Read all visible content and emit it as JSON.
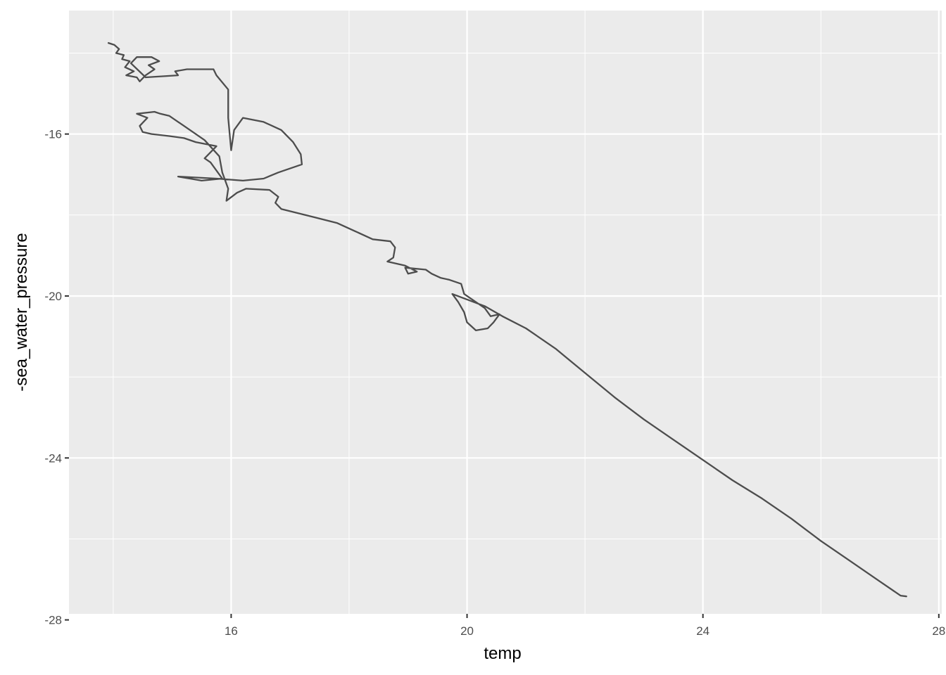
{
  "chart_data": {
    "type": "line",
    "title": "",
    "xlabel": "temp",
    "ylabel": "-sea_water_pressure",
    "xlim": [
      13.25,
      28.05
    ],
    "ylim": [
      -27.85,
      -12.95
    ],
    "x_ticks": [
      16,
      20,
      24,
      28
    ],
    "y_ticks": [
      -16,
      -20,
      -24,
      -28
    ],
    "x_tick_labels": [
      "16",
      "20",
      "24",
      "28"
    ],
    "y_tick_labels": [
      "-16",
      "-20",
      "-24",
      "-28"
    ],
    "grid": true,
    "legend": "none",
    "colors": {
      "panel": "#ebebeb",
      "grid": "#ffffff",
      "line": "#4d4d4d"
    },
    "series": [
      {
        "values": [
          [
            13.92,
            -13.75
          ],
          [
            14.02,
            -13.8
          ],
          [
            14.1,
            -13.9
          ],
          [
            14.05,
            -14.0
          ],
          [
            14.18,
            -14.05
          ],
          [
            14.15,
            -14.15
          ],
          [
            14.28,
            -14.2
          ],
          [
            14.2,
            -14.35
          ],
          [
            14.35,
            -14.45
          ],
          [
            14.22,
            -14.55
          ],
          [
            14.4,
            -14.6
          ],
          [
            14.45,
            -14.7
          ],
          [
            14.55,
            -14.55
          ],
          [
            14.7,
            -14.4
          ],
          [
            14.6,
            -14.3
          ],
          [
            14.78,
            -14.2
          ],
          [
            14.65,
            -14.1
          ],
          [
            14.4,
            -14.1
          ],
          [
            14.3,
            -14.25
          ],
          [
            14.55,
            -14.6
          ],
          [
            15.1,
            -14.55
          ],
          [
            15.05,
            -14.45
          ],
          [
            15.25,
            -14.4
          ],
          [
            15.7,
            -14.4
          ],
          [
            15.75,
            -14.55
          ],
          [
            15.95,
            -14.9
          ],
          [
            15.95,
            -15.6
          ],
          [
            16.0,
            -16.4
          ],
          [
            16.05,
            -15.9
          ],
          [
            16.2,
            -15.6
          ],
          [
            16.55,
            -15.7
          ],
          [
            16.85,
            -15.9
          ],
          [
            17.05,
            -16.2
          ],
          [
            17.18,
            -16.5
          ],
          [
            17.2,
            -16.75
          ],
          [
            16.8,
            -16.95
          ],
          [
            16.55,
            -17.1
          ],
          [
            16.2,
            -17.15
          ],
          [
            15.75,
            -17.1
          ],
          [
            15.1,
            -17.05
          ],
          [
            15.5,
            -17.15
          ],
          [
            15.85,
            -17.1
          ],
          [
            15.65,
            -16.7
          ],
          [
            15.55,
            -16.6
          ],
          [
            15.75,
            -16.3
          ],
          [
            15.4,
            -16.2
          ],
          [
            15.2,
            -16.1
          ],
          [
            14.95,
            -16.05
          ],
          [
            14.65,
            -16.0
          ],
          [
            14.5,
            -15.95
          ],
          [
            14.45,
            -15.8
          ],
          [
            14.58,
            -15.6
          ],
          [
            14.4,
            -15.5
          ],
          [
            14.7,
            -15.45
          ],
          [
            14.8,
            -15.5
          ],
          [
            14.95,
            -15.55
          ],
          [
            15.2,
            -15.8
          ],
          [
            15.55,
            -16.15
          ],
          [
            15.8,
            -16.55
          ],
          [
            15.85,
            -16.95
          ],
          [
            15.95,
            -17.35
          ],
          [
            15.92,
            -17.65
          ],
          [
            16.1,
            -17.45
          ],
          [
            16.25,
            -17.35
          ],
          [
            16.65,
            -17.38
          ],
          [
            16.8,
            -17.55
          ],
          [
            16.75,
            -17.7
          ],
          [
            16.85,
            -17.85
          ],
          [
            17.4,
            -18.05
          ],
          [
            17.8,
            -18.2
          ],
          [
            18.1,
            -18.4
          ],
          [
            18.4,
            -18.6
          ],
          [
            18.7,
            -18.65
          ],
          [
            18.78,
            -18.8
          ],
          [
            18.75,
            -19.05
          ],
          [
            18.65,
            -19.15
          ],
          [
            18.95,
            -19.25
          ],
          [
            19.15,
            -19.4
          ],
          [
            19.0,
            -19.45
          ],
          [
            18.95,
            -19.3
          ],
          [
            19.3,
            -19.35
          ],
          [
            19.4,
            -19.45
          ],
          [
            19.55,
            -19.55
          ],
          [
            19.7,
            -19.6
          ],
          [
            19.9,
            -19.7
          ],
          [
            19.95,
            -19.95
          ],
          [
            20.05,
            -20.05
          ],
          [
            20.3,
            -20.3
          ],
          [
            20.4,
            -20.5
          ],
          [
            20.55,
            -20.45
          ],
          [
            20.45,
            -20.65
          ],
          [
            20.35,
            -20.8
          ],
          [
            20.15,
            -20.85
          ],
          [
            20.0,
            -20.65
          ],
          [
            19.95,
            -20.4
          ],
          [
            19.85,
            -20.15
          ],
          [
            19.75,
            -19.95
          ],
          [
            20.3,
            -20.25
          ],
          [
            20.6,
            -20.5
          ],
          [
            21.0,
            -20.8
          ],
          [
            21.5,
            -21.3
          ],
          [
            22.0,
            -21.9
          ],
          [
            22.5,
            -22.5
          ],
          [
            23.0,
            -23.05
          ],
          [
            23.5,
            -23.55
          ],
          [
            24.0,
            -24.05
          ],
          [
            24.5,
            -24.55
          ],
          [
            25.0,
            -25.0
          ],
          [
            25.5,
            -25.5
          ],
          [
            26.0,
            -26.05
          ],
          [
            26.5,
            -26.55
          ],
          [
            27.0,
            -27.05
          ],
          [
            27.35,
            -27.4
          ],
          [
            27.45,
            -27.42
          ]
        ]
      }
    ]
  }
}
